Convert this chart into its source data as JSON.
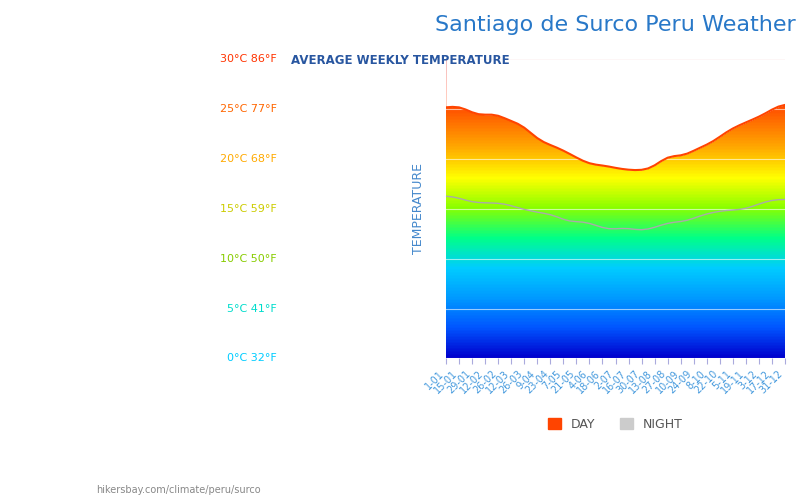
{
  "title": "Santiago de Surco Peru Weather",
  "subtitle": "AVERAGE WEEKLY TEMPERATURE",
  "title_color": "#2878c8",
  "subtitle_color": "#2856a0",
  "ylabel": "TEMPERATURE",
  "ylabel_color": "#4488cc",
  "ymin": 0,
  "ymax": 30,
  "yticks": [
    0,
    5,
    10,
    15,
    20,
    25,
    30
  ],
  "ytick_labels": [
    "0°C 32°F",
    "5°C 41°F",
    "10°C 50°F",
    "15°C 59°F",
    "20°C 68°F",
    "25°C 77°F",
    "30°C 86°F"
  ],
  "ytick_colors": [
    "#00ccff",
    "#00ddcc",
    "#88cc00",
    "#cccc00",
    "#ffaa00",
    "#ff6600",
    "#ff3300"
  ],
  "background_color": "#ffffff",
  "x_labels": [
    "1-01",
    "15-01",
    "29-01",
    "12-02",
    "26-02",
    "12-03",
    "26-03",
    "9-04",
    "23-04",
    "7-05",
    "21-05",
    "4-06",
    "18-06",
    "2-07",
    "16-07",
    "30-07",
    "13-08",
    "27-08",
    "10-09",
    "24-09",
    "8-10",
    "22-10",
    "5-11",
    "19-11",
    "3-12",
    "17-12",
    "31-12"
  ],
  "footer_text": "hikersbay.com/climate/peru/surco",
  "day_color": "#ff4400",
  "night_color": "#cccccc",
  "legend_day_label": "DAY",
  "legend_night_label": "NIGHT"
}
